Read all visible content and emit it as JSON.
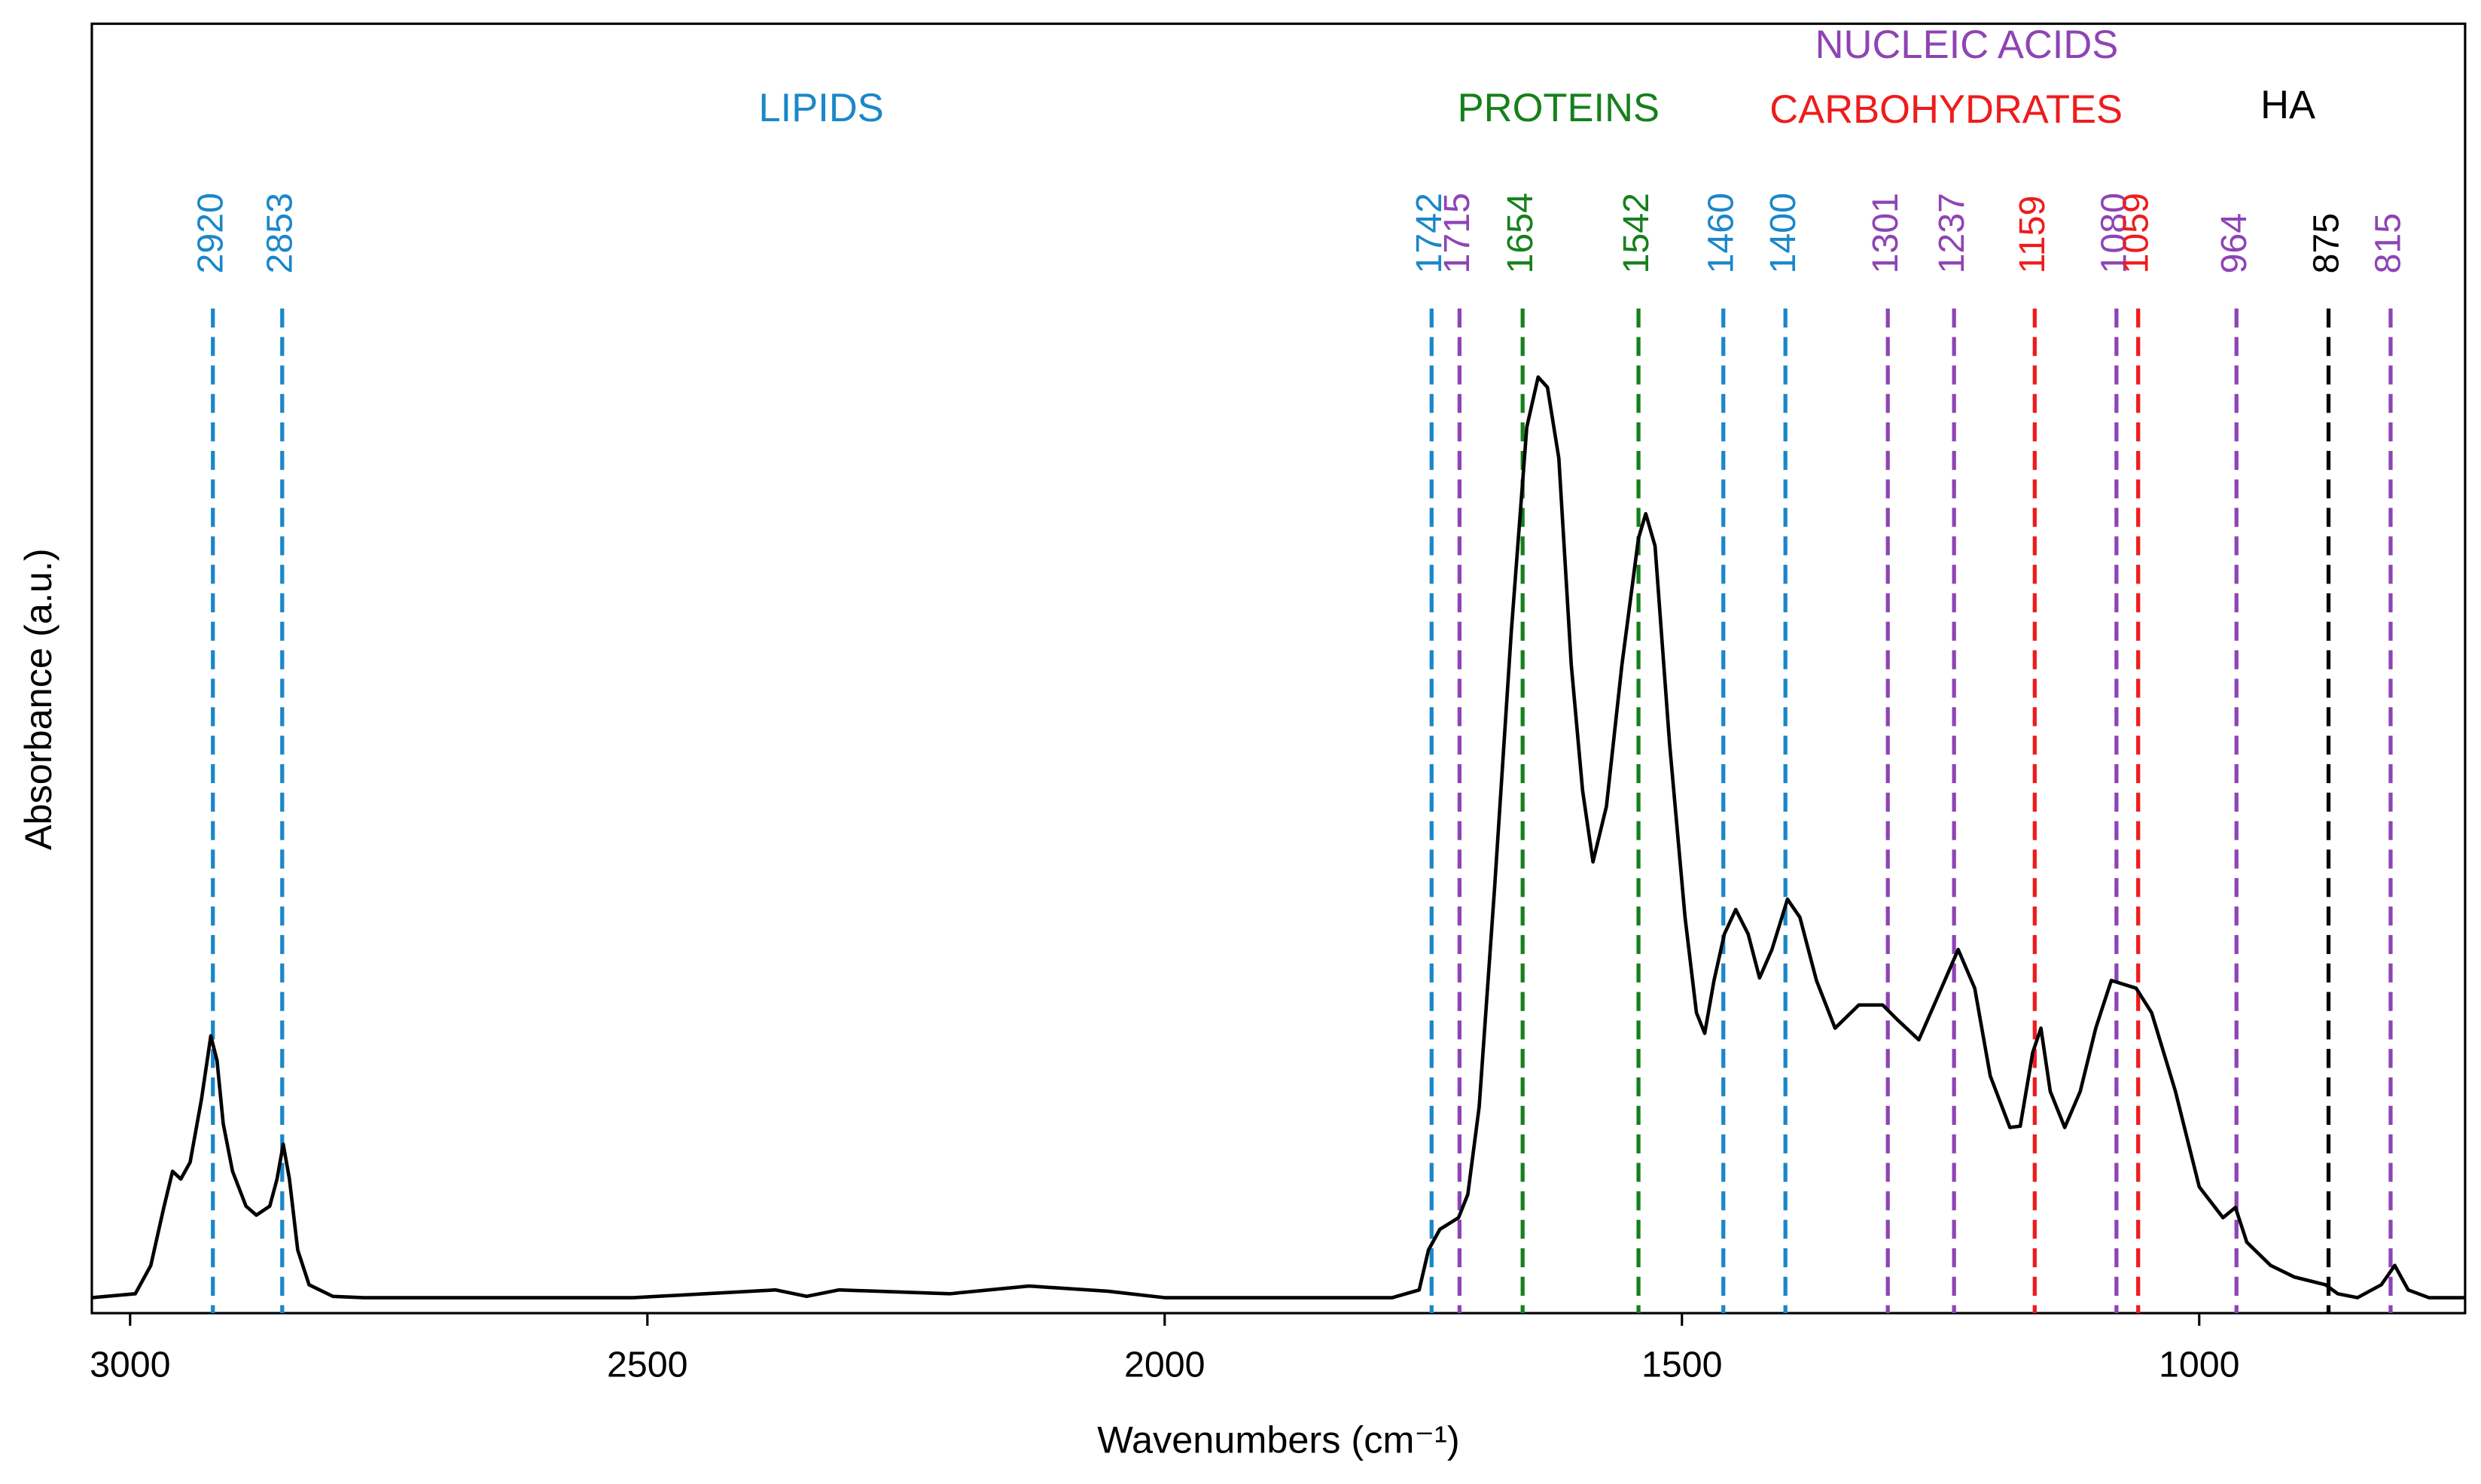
{
  "chart_data": {
    "type": "line",
    "xlabel": "Wavenumbers (cm⁻¹)",
    "ylabel": "Absorbance (a.u.)",
    "xlim": [
      3037,
      743
    ],
    "ylim": [
      0,
      1
    ],
    "xticks": [
      3000,
      2500,
      2000,
      1500,
      1000
    ],
    "color": "#000000",
    "x": [
      3037,
      2995,
      2980,
      2968,
      2959,
      2951,
      2942,
      2931,
      2922,
      2916,
      2910,
      2901,
      2888,
      2878,
      2865,
      2858,
      2852,
      2846,
      2838,
      2827,
      2804,
      2774,
      2514,
      2376,
      2346,
      2315,
      2208,
      2131,
      2055,
      2000,
      1780,
      1754,
      1745,
      1734,
      1716,
      1707,
      1696,
      1681,
      1665,
      1650,
      1639,
      1630,
      1619,
      1607,
      1596,
      1586,
      1573,
      1558,
      1542,
      1535,
      1526,
      1512,
      1497,
      1486,
      1478,
      1469,
      1459,
      1448,
      1436,
      1425,
      1413,
      1398,
      1386,
      1370,
      1352,
      1329,
      1306,
      1291,
      1271,
      1253,
      1233,
      1217,
      1202,
      1183,
      1173,
      1161,
      1153,
      1144,
      1130,
      1115,
      1100,
      1085,
      1061,
      1046,
      1023,
      1000,
      977,
      965,
      954,
      931,
      908,
      878,
      866,
      847,
      824,
      811,
      798,
      778,
      743
    ],
    "values": [
      0.012,
      0.015,
      0.037,
      0.08,
      0.11,
      0.104,
      0.117,
      0.166,
      0.215,
      0.196,
      0.147,
      0.11,
      0.083,
      0.076,
      0.083,
      0.104,
      0.131,
      0.104,
      0.049,
      0.022,
      0.013,
      0.012,
      0.012,
      0.018,
      0.013,
      0.018,
      0.015,
      0.021,
      0.017,
      0.012,
      0.012,
      0.018,
      0.049,
      0.065,
      0.074,
      0.092,
      0.16,
      0.331,
      0.528,
      0.687,
      0.726,
      0.718,
      0.663,
      0.503,
      0.405,
      0.35,
      0.393,
      0.503,
      0.601,
      0.62,
      0.595,
      0.442,
      0.307,
      0.233,
      0.217,
      0.258,
      0.294,
      0.313,
      0.294,
      0.26,
      0.282,
      0.321,
      0.307,
      0.258,
      0.221,
      0.239,
      0.239,
      0.227,
      0.212,
      0.245,
      0.282,
      0.252,
      0.184,
      0.144,
      0.145,
      0.202,
      0.221,
      0.172,
      0.144,
      0.172,
      0.221,
      0.258,
      0.252,
      0.233,
      0.172,
      0.098,
      0.074,
      0.082,
      0.055,
      0.037,
      0.028,
      0.022,
      0.015,
      0.012,
      0.022,
      0.037,
      0.018,
      0.012,
      0.012
    ],
    "groups": [
      {
        "name": "LIPIDS",
        "color": "#1a87c9"
      },
      {
        "name": "PROTEINS",
        "color": "#16801c"
      },
      {
        "name": "NUCLEIC ACIDS",
        "color": "#8e44b4"
      },
      {
        "name": "CARBOHYDRATES",
        "color": "#ee1c1c"
      },
      {
        "name": "HA",
        "color": "#000000"
      }
    ],
    "bands": [
      {
        "x": 2920,
        "color": "#1a87c9"
      },
      {
        "x": 2853,
        "color": "#1a87c9"
      },
      {
        "x": 1742,
        "color": "#1a87c9"
      },
      {
        "x": 1715,
        "color": "#8e44b4"
      },
      {
        "x": 1654,
        "color": "#16801c"
      },
      {
        "x": 1542,
        "color": "#16801c"
      },
      {
        "x": 1460,
        "color": "#1a87c9"
      },
      {
        "x": 1400,
        "color": "#1a87c9"
      },
      {
        "x": 1301,
        "color": "#8e44b4"
      },
      {
        "x": 1237,
        "color": "#8e44b4"
      },
      {
        "x": 1159,
        "color": "#ee1c1c"
      },
      {
        "x": 1080,
        "color": "#8e44b4"
      },
      {
        "x": 1059,
        "color": "#ee1c1c"
      },
      {
        "x": 964,
        "color": "#8e44b4"
      },
      {
        "x": 875,
        "color": "#000000"
      },
      {
        "x": 815,
        "color": "#8e44b4"
      }
    ]
  }
}
